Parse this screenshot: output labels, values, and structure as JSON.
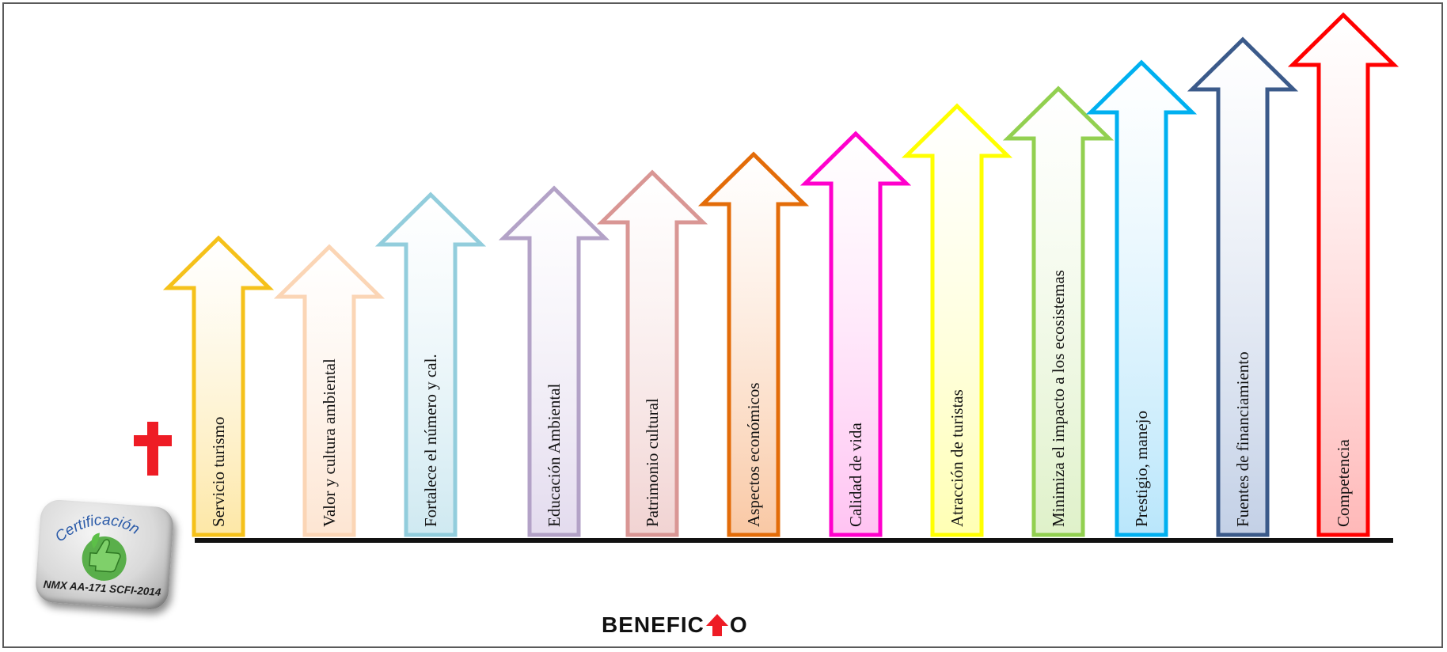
{
  "diagram": {
    "plus_color": "#ee1c25",
    "plus_icon": "plus-icon",
    "baseline_color": "#111111",
    "arrows": [
      {
        "label": "Servicio turismo",
        "stroke": "#f5c11a",
        "fill": "#fde7a6"
      },
      {
        "label": "Valor y cultura ambiental",
        "stroke": "#fbd5b5",
        "fill": "#fde5d2"
      },
      {
        "label": "Fortalece el número y cal.",
        "stroke": "#92cddc",
        "fill": "#cfe9f1"
      },
      {
        "label": "Educación Ambiental",
        "stroke": "#b3a2c7",
        "fill": "#e3dbee"
      },
      {
        "label": "Patrimonio cultural",
        "stroke": "#d99694",
        "fill": "#f1d3d2"
      },
      {
        "label": "Aspectos económicos",
        "stroke": "#e36c09",
        "fill": "#f9c8a4"
      },
      {
        "label": "Calidad de vida",
        "stroke": "#ff00cc",
        "fill": "#ffc3f2"
      },
      {
        "label": "Atracción de turistas",
        "stroke": "#ffff00",
        "fill": "#ffffb4"
      },
      {
        "label": "Minimiza el impacto a los ecosistemas",
        "stroke": "#92d050",
        "fill": "#dff1c9"
      },
      {
        "label": "Prestigio, manejo",
        "stroke": "#00b0f0",
        "fill": "#b9e6fb"
      },
      {
        "label": "Fuentes de financiamiento",
        "stroke": "#3b5a8a",
        "fill": "#c3d0e6"
      },
      {
        "label": "Competencia",
        "stroke": "#ff0000",
        "fill": "#ffb8b8"
      }
    ]
  },
  "badge": {
    "title": "Certificación",
    "code": "NMX AA-171 SCFI-2014",
    "icon": "thumbs-up-leaf-icon",
    "accent": "#4aa83a"
  },
  "footer": {
    "word_start": "BENEFIC",
    "word_end": "O",
    "arrow_icon": "up-arrow-icon",
    "arrow_color": "#ee1c25"
  }
}
